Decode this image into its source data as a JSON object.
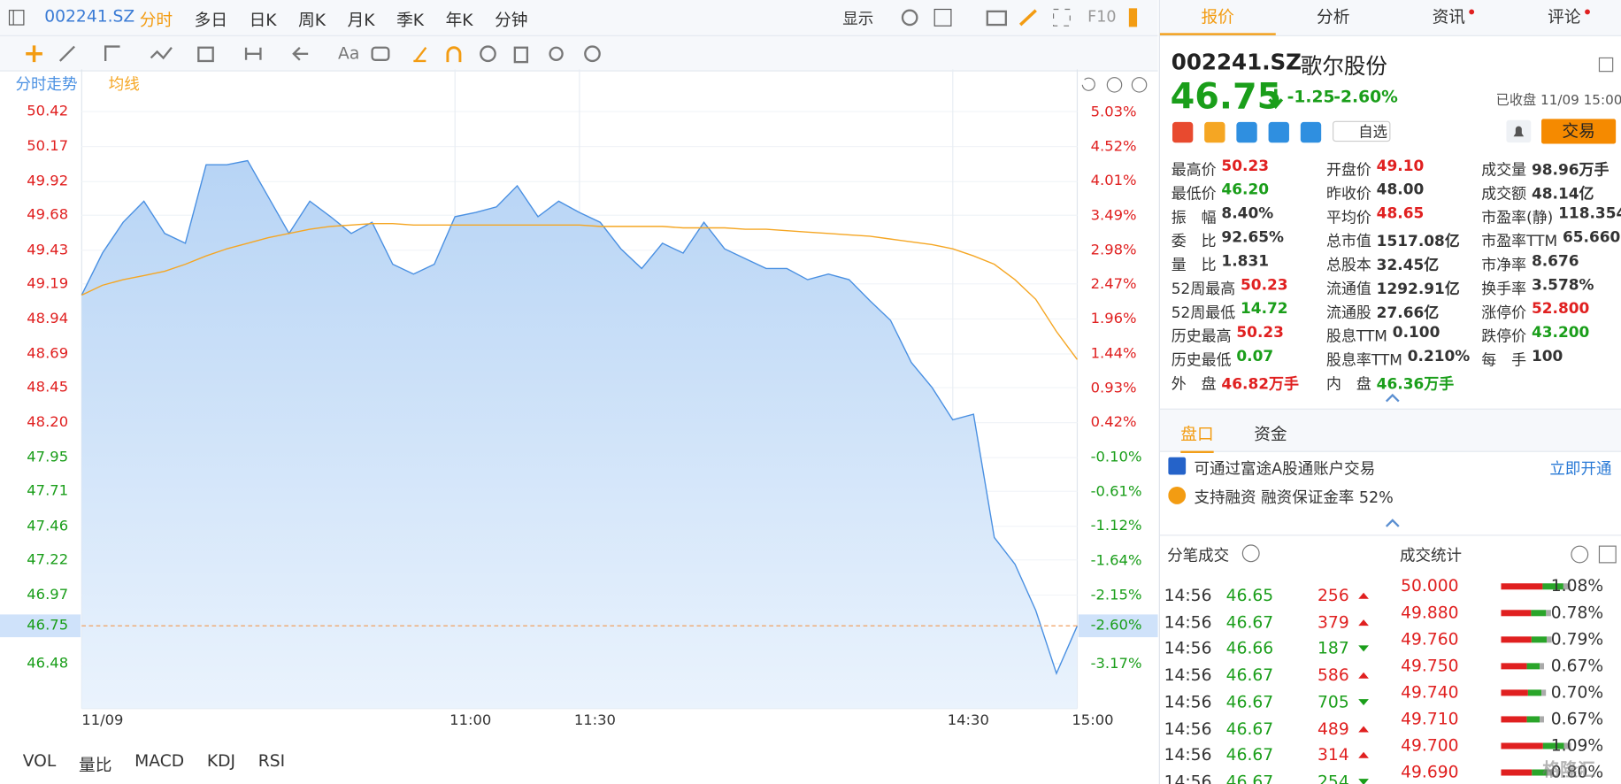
{
  "toolbar": {
    "symbol": "002241.SZ",
    "periods": [
      "分时",
      "多日",
      "日K",
      "周K",
      "月K",
      "季K",
      "年K",
      "分钟"
    ],
    "display": "显示",
    "f10": "F10",
    "text_tool": "Aa"
  },
  "chart_data": {
    "type": "line",
    "series": [
      {
        "name": "分时走势",
        "color": "#4a90e2",
        "values": [
          49.11,
          49.41,
          49.63,
          49.78,
          49.55,
          49.48,
          50.04,
          50.04,
          50.07,
          49.81,
          49.55,
          49.78,
          49.67,
          49.55,
          49.63,
          49.33,
          49.26,
          49.33,
          49.67,
          49.7,
          49.74,
          49.89,
          49.67,
          49.78,
          49.7,
          49.63,
          49.44,
          49.3,
          49.48,
          49.41,
          49.63,
          49.44,
          49.37,
          49.3,
          49.3,
          49.22,
          49.26,
          49.22,
          49.07,
          48.93,
          48.63,
          48.45,
          48.22,
          48.26,
          47.38,
          47.19,
          46.86,
          46.41,
          46.75
        ]
      },
      {
        "name": "均线",
        "color": "#f5a623",
        "values": [
          49.11,
          49.18,
          49.22,
          49.25,
          49.28,
          49.33,
          49.39,
          49.44,
          49.48,
          49.52,
          49.55,
          49.58,
          49.6,
          49.61,
          49.62,
          49.62,
          49.61,
          49.61,
          49.61,
          49.61,
          49.61,
          49.61,
          49.61,
          49.61,
          49.61,
          49.6,
          49.6,
          49.6,
          49.6,
          49.59,
          49.59,
          49.59,
          49.58,
          49.58,
          49.57,
          49.56,
          49.55,
          49.54,
          49.53,
          49.51,
          49.49,
          49.47,
          49.44,
          49.39,
          49.33,
          49.22,
          49.08,
          48.85,
          48.65
        ]
      }
    ],
    "xlim": [
      0,
      240
    ],
    "xticks": [
      {
        "value": 0,
        "label": "11/09"
      },
      {
        "value": 90,
        "label": "11:00"
      },
      {
        "value": 120,
        "label": "11:30"
      },
      {
        "value": 210,
        "label": "14:30"
      },
      {
        "value": 240,
        "label": "15:00"
      }
    ],
    "ylim": [
      46.16,
      50.5
    ],
    "yticks": [
      50.42,
      50.17,
      49.92,
      49.68,
      49.43,
      49.19,
      48.94,
      48.69,
      48.45,
      {
        "value": 48.2,
        "label": "48.20"
      },
      47.95,
      47.71,
      47.46,
      47.22,
      46.97,
      46.48
    ],
    "y2lim": [
      -3.83,
      5.21
    ],
    "y2ticks": [
      {
        "value": 5.03,
        "label": "5.03%"
      },
      {
        "value": 4.52,
        "label": "4.52%"
      },
      {
        "value": 4.01,
        "label": "4.01%"
      },
      {
        "value": 3.49,
        "label": "3.49%"
      },
      {
        "value": 2.98,
        "label": "2.98%"
      },
      {
        "value": 2.47,
        "label": "2.47%"
      },
      {
        "value": 1.96,
        "label": "1.96%"
      },
      {
        "value": 1.44,
        "label": "1.44%"
      },
      {
        "value": 0.93,
        "label": "0.93%"
      },
      {
        "value": 0.42,
        "label": "0.42%"
      },
      {
        "value": -0.1,
        "label": "-0.10%"
      },
      {
        "value": -0.61,
        "label": "-0.61%"
      },
      {
        "value": -1.12,
        "label": "-1.12%"
      },
      {
        "value": -1.64,
        "label": "-1.64%"
      },
      {
        "value": -2.15,
        "label": "-2.15%"
      },
      {
        "value": -3.17,
        "label": "-3.17%"
      }
    ],
    "last_price": 46.75,
    "last_pct": {
      "value": -2.6,
      "label": "-2.60%"
    }
  },
  "indicators": [
    "VOL",
    "量比",
    "MACD",
    "KDJ",
    "RSI"
  ],
  "quote": {
    "tabs": [
      "报价",
      "分析",
      "资讯",
      "评论"
    ],
    "symbol": "002241.SZ",
    "name": "歌尔股份",
    "price": "46.75",
    "change": "-1.25",
    "change_pct": "-2.60%",
    "status": "已收盘 11/09 15:00",
    "watch": "自选",
    "trade": "交易",
    "stats": [
      [
        {
          "label": "最高价",
          "value": "50.23",
          "color": "#e02020"
        },
        {
          "label": "最低价",
          "value": "46.20",
          "color": "#1a9e1a"
        },
        {
          "label": "振　幅",
          "value": "8.40%",
          "color": "#333"
        },
        {
          "label": "委　比",
          "value": "92.65%",
          "color": "#333"
        },
        {
          "label": "量　比",
          "value": "1.831",
          "color": "#333"
        },
        {
          "label": "52周最高",
          "value": "50.23",
          "color": "#e02020"
        },
        {
          "label": "52周最低",
          "value": "14.72",
          "color": "#1a9e1a"
        },
        {
          "label": "历史最高",
          "value": "50.23",
          "color": "#e02020"
        },
        {
          "label": "历史最低",
          "value": "0.07",
          "color": "#1a9e1a"
        },
        {
          "label": "外　盘",
          "value": "46.82万手",
          "color": "#e02020"
        }
      ],
      [
        {
          "label": "开盘价",
          "value": "49.10",
          "color": "#e02020"
        },
        {
          "label": "昨收价",
          "value": "48.00",
          "color": "#333"
        },
        {
          "label": "平均价",
          "value": "48.65",
          "color": "#e02020"
        },
        {
          "label": "总市值",
          "value": "1517.08亿",
          "color": "#333"
        },
        {
          "label": "总股本",
          "value": "32.45亿",
          "color": "#333"
        },
        {
          "label": "流通值",
          "value": "1292.91亿",
          "color": "#333"
        },
        {
          "label": "流通股",
          "value": "27.66亿",
          "color": "#333"
        },
        {
          "label": "股息TTM",
          "value": "0.100",
          "color": "#333"
        },
        {
          "label": "股息率TTM",
          "value": "0.210%",
          "color": "#333"
        },
        {
          "label": "内　盘",
          "value": "46.36万手",
          "color": "#1a9e1a"
        }
      ],
      [
        {
          "label": "成交量",
          "value": "98.96万手",
          "color": "#333"
        },
        {
          "label": "成交额",
          "value": "48.14亿",
          "color": "#333"
        },
        {
          "label": "市盈率(静)",
          "value": "118.354",
          "color": "#333"
        },
        {
          "label": "市盈率TTM",
          "value": "65.660",
          "color": "#333"
        },
        {
          "label": "市净率",
          "value": "8.676",
          "color": "#333"
        },
        {
          "label": "换手率",
          "value": "3.578%",
          "color": "#333"
        },
        {
          "label": "涨停价",
          "value": "52.800",
          "color": "#e02020"
        },
        {
          "label": "跌停价",
          "value": "43.200",
          "color": "#1a9e1a"
        },
        {
          "label": "每　手",
          "value": "100",
          "color": "#333"
        }
      ]
    ]
  },
  "panel_tabs": [
    "盘口",
    "资金"
  ],
  "notices": {
    "account": "可通过富途A股通账户交易",
    "open": "立即开通",
    "margin": "支持融资 融资保证金率 52%"
  },
  "ticks": {
    "title": "分笔成交",
    "rows": [
      {
        "time": "14:56",
        "price": "46.65",
        "volume": "256",
        "color": "#e02020"
      },
      {
        "time": "14:56",
        "price": "46.67",
        "volume": "379",
        "color": "#e02020"
      },
      {
        "time": "14:56",
        "price": "46.66",
        "volume": "187",
        "color": "#1a9e1a"
      },
      {
        "time": "14:56",
        "price": "46.67",
        "volume": "586",
        "color": "#e02020"
      },
      {
        "time": "14:56",
        "price": "46.67",
        "volume": "705",
        "color": "#1a9e1a"
      },
      {
        "time": "14:56",
        "price": "46.67",
        "volume": "489",
        "color": "#e02020"
      },
      {
        "time": "14:56",
        "price": "46.67",
        "volume": "314",
        "color": "#e02020"
      },
      {
        "time": "14:56",
        "price": "46.67",
        "volume": "254",
        "color": "#1a9e1a"
      }
    ]
  },
  "trade_stats": {
    "title": "成交统计",
    "rows": [
      {
        "price": "50.000",
        "pct": {
          "value": 1.08,
          "label": "1.08%"
        }
      },
      {
        "price": "49.880",
        "pct": {
          "value": 0.78,
          "label": "0.78%"
        }
      },
      {
        "price": "49.760",
        "pct": {
          "value": 0.79,
          "label": "0.79%"
        }
      },
      {
        "price": "49.750",
        "pct": {
          "value": 0.67,
          "label": "0.67%"
        }
      },
      {
        "price": "49.740",
        "pct": {
          "value": 0.7,
          "label": "0.70%"
        }
      },
      {
        "price": "49.710",
        "pct": {
          "value": 0.67,
          "label": "0.67%"
        }
      },
      {
        "price": "49.700",
        "pct": {
          "value": 1.09,
          "label": "1.09%"
        }
      },
      {
        "price": "49.690",
        "pct": {
          "value": 0.8,
          "label": "0.80%"
        }
      }
    ]
  },
  "watermark": "格隆汇"
}
